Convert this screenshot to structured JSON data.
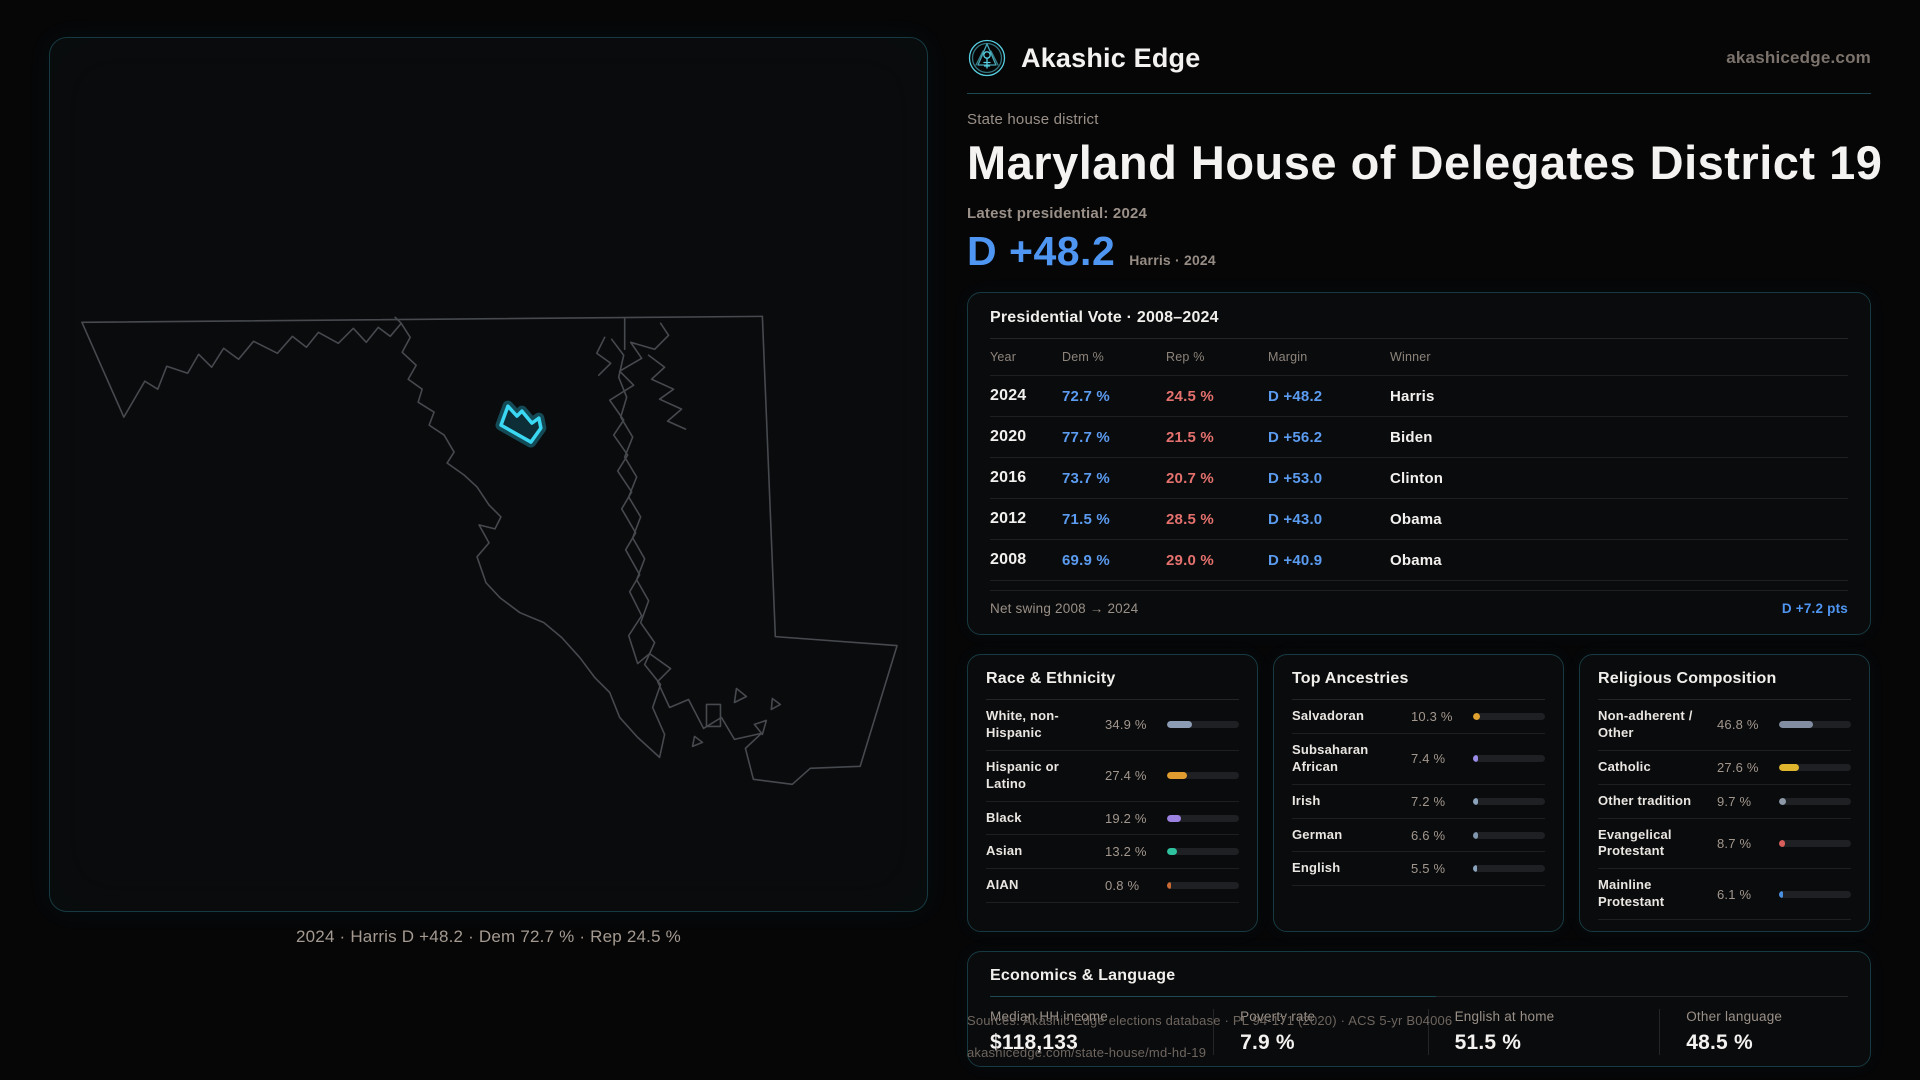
{
  "brand": {
    "name": "Akashic Edge",
    "domain": "akashicedge.com"
  },
  "header": {
    "kicker": "State house district",
    "title": "Maryland House of Delegates District 19",
    "latest_label": "Latest presidential: 2024",
    "margin_value": "D +48.2",
    "margin_context": "Harris · 2024"
  },
  "map": {
    "caption": "2024 · Harris D +48.2 · Dem 72.7 % · Rep 24.5 %",
    "district_color": "#3ad8f2",
    "outline_color": "#46494e"
  },
  "presidential_table": {
    "title": "Presidential Vote · 2008–2024",
    "columns": [
      "Year",
      "Dem %",
      "Rep %",
      "Margin",
      "Winner"
    ],
    "rows": [
      {
        "year": "2024",
        "dem": "72.7 %",
        "rep": "24.5 %",
        "margin": "D +48.2",
        "winner": "Harris"
      },
      {
        "year": "2020",
        "dem": "77.7 %",
        "rep": "21.5 %",
        "margin": "D +56.2",
        "winner": "Biden"
      },
      {
        "year": "2016",
        "dem": "73.7 %",
        "rep": "20.7 %",
        "margin": "D +53.0",
        "winner": "Clinton"
      },
      {
        "year": "2012",
        "dem": "71.5 %",
        "rep": "28.5 %",
        "margin": "D +43.0",
        "winner": "Obama"
      },
      {
        "year": "2008",
        "dem": "69.9 %",
        "rep": "29.0 %",
        "margin": "D +40.9",
        "winner": "Obama"
      }
    ],
    "footer_label": "Net swing 2008 → 2024",
    "footer_value": "D +7.2 pts"
  },
  "race_panel": {
    "title": "Race & Ethnicity",
    "rows": [
      {
        "label": "White, non-Hispanic",
        "value": "34.9 %",
        "pct": 34.9,
        "color": "#8d9cb5"
      },
      {
        "label": "Hispanic or Latino",
        "value": "27.4 %",
        "pct": 27.4,
        "color": "#e09c2e"
      },
      {
        "label": "Black",
        "value": "19.2 %",
        "pct": 19.2,
        "color": "#9b82e0"
      },
      {
        "label": "Asian",
        "value": "13.2 %",
        "pct": 13.2,
        "color": "#2fc29e"
      },
      {
        "label": "AIAN",
        "value": "0.8 %",
        "pct": 0.8,
        "color": "#c96a35"
      }
    ]
  },
  "ancestry_panel": {
    "title": "Top Ancestries",
    "rows": [
      {
        "label": "Salvadoran",
        "value": "10.3 %",
        "pct": 10.3,
        "color": "#e0a12e"
      },
      {
        "label": "Subsaharan African",
        "value": "7.4 %",
        "pct": 7.4,
        "color": "#9a8ce8"
      },
      {
        "label": "Irish",
        "value": "7.2 %",
        "pct": 7.2,
        "color": "#8ba3bd"
      },
      {
        "label": "German",
        "value": "6.6 %",
        "pct": 6.6,
        "color": "#7f96ad"
      },
      {
        "label": "English",
        "value": "5.5 %",
        "pct": 5.5,
        "color": "#8ba3bd"
      }
    ]
  },
  "religion_panel": {
    "title": "Religious Composition",
    "rows": [
      {
        "label": "Non-adherent / Other",
        "value": "46.8 %",
        "pct": 46.8,
        "color": "#828da1"
      },
      {
        "label": "Catholic",
        "value": "27.6 %",
        "pct": 27.6,
        "color": "#e0b52e"
      },
      {
        "label": "Other tradition",
        "value": "9.7 %",
        "pct": 9.7,
        "color": "#8d99a8"
      },
      {
        "label": "Evangelical Protestant",
        "value": "8.7 %",
        "pct": 8.7,
        "color": "#d95f5c"
      },
      {
        "label": "Mainline Protestant",
        "value": "6.1 %",
        "pct": 6.1,
        "color": "#4b8fe0"
      }
    ]
  },
  "economics_panel": {
    "title": "Economics & Language",
    "stats": [
      {
        "label": "Median HH income",
        "value": "$118,133"
      },
      {
        "label": "Poverty rate",
        "value": "7.9 %"
      },
      {
        "label": "English at home",
        "value": "51.5 %"
      },
      {
        "label": "Other language",
        "value": "48.5 %"
      }
    ]
  },
  "source": {
    "line1": "Sources: Akashic Edge elections database · PL 94-171 (2020) · ACS 5-yr B04006",
    "line2": "akashicedge.com/state-house/md-hd-19"
  }
}
